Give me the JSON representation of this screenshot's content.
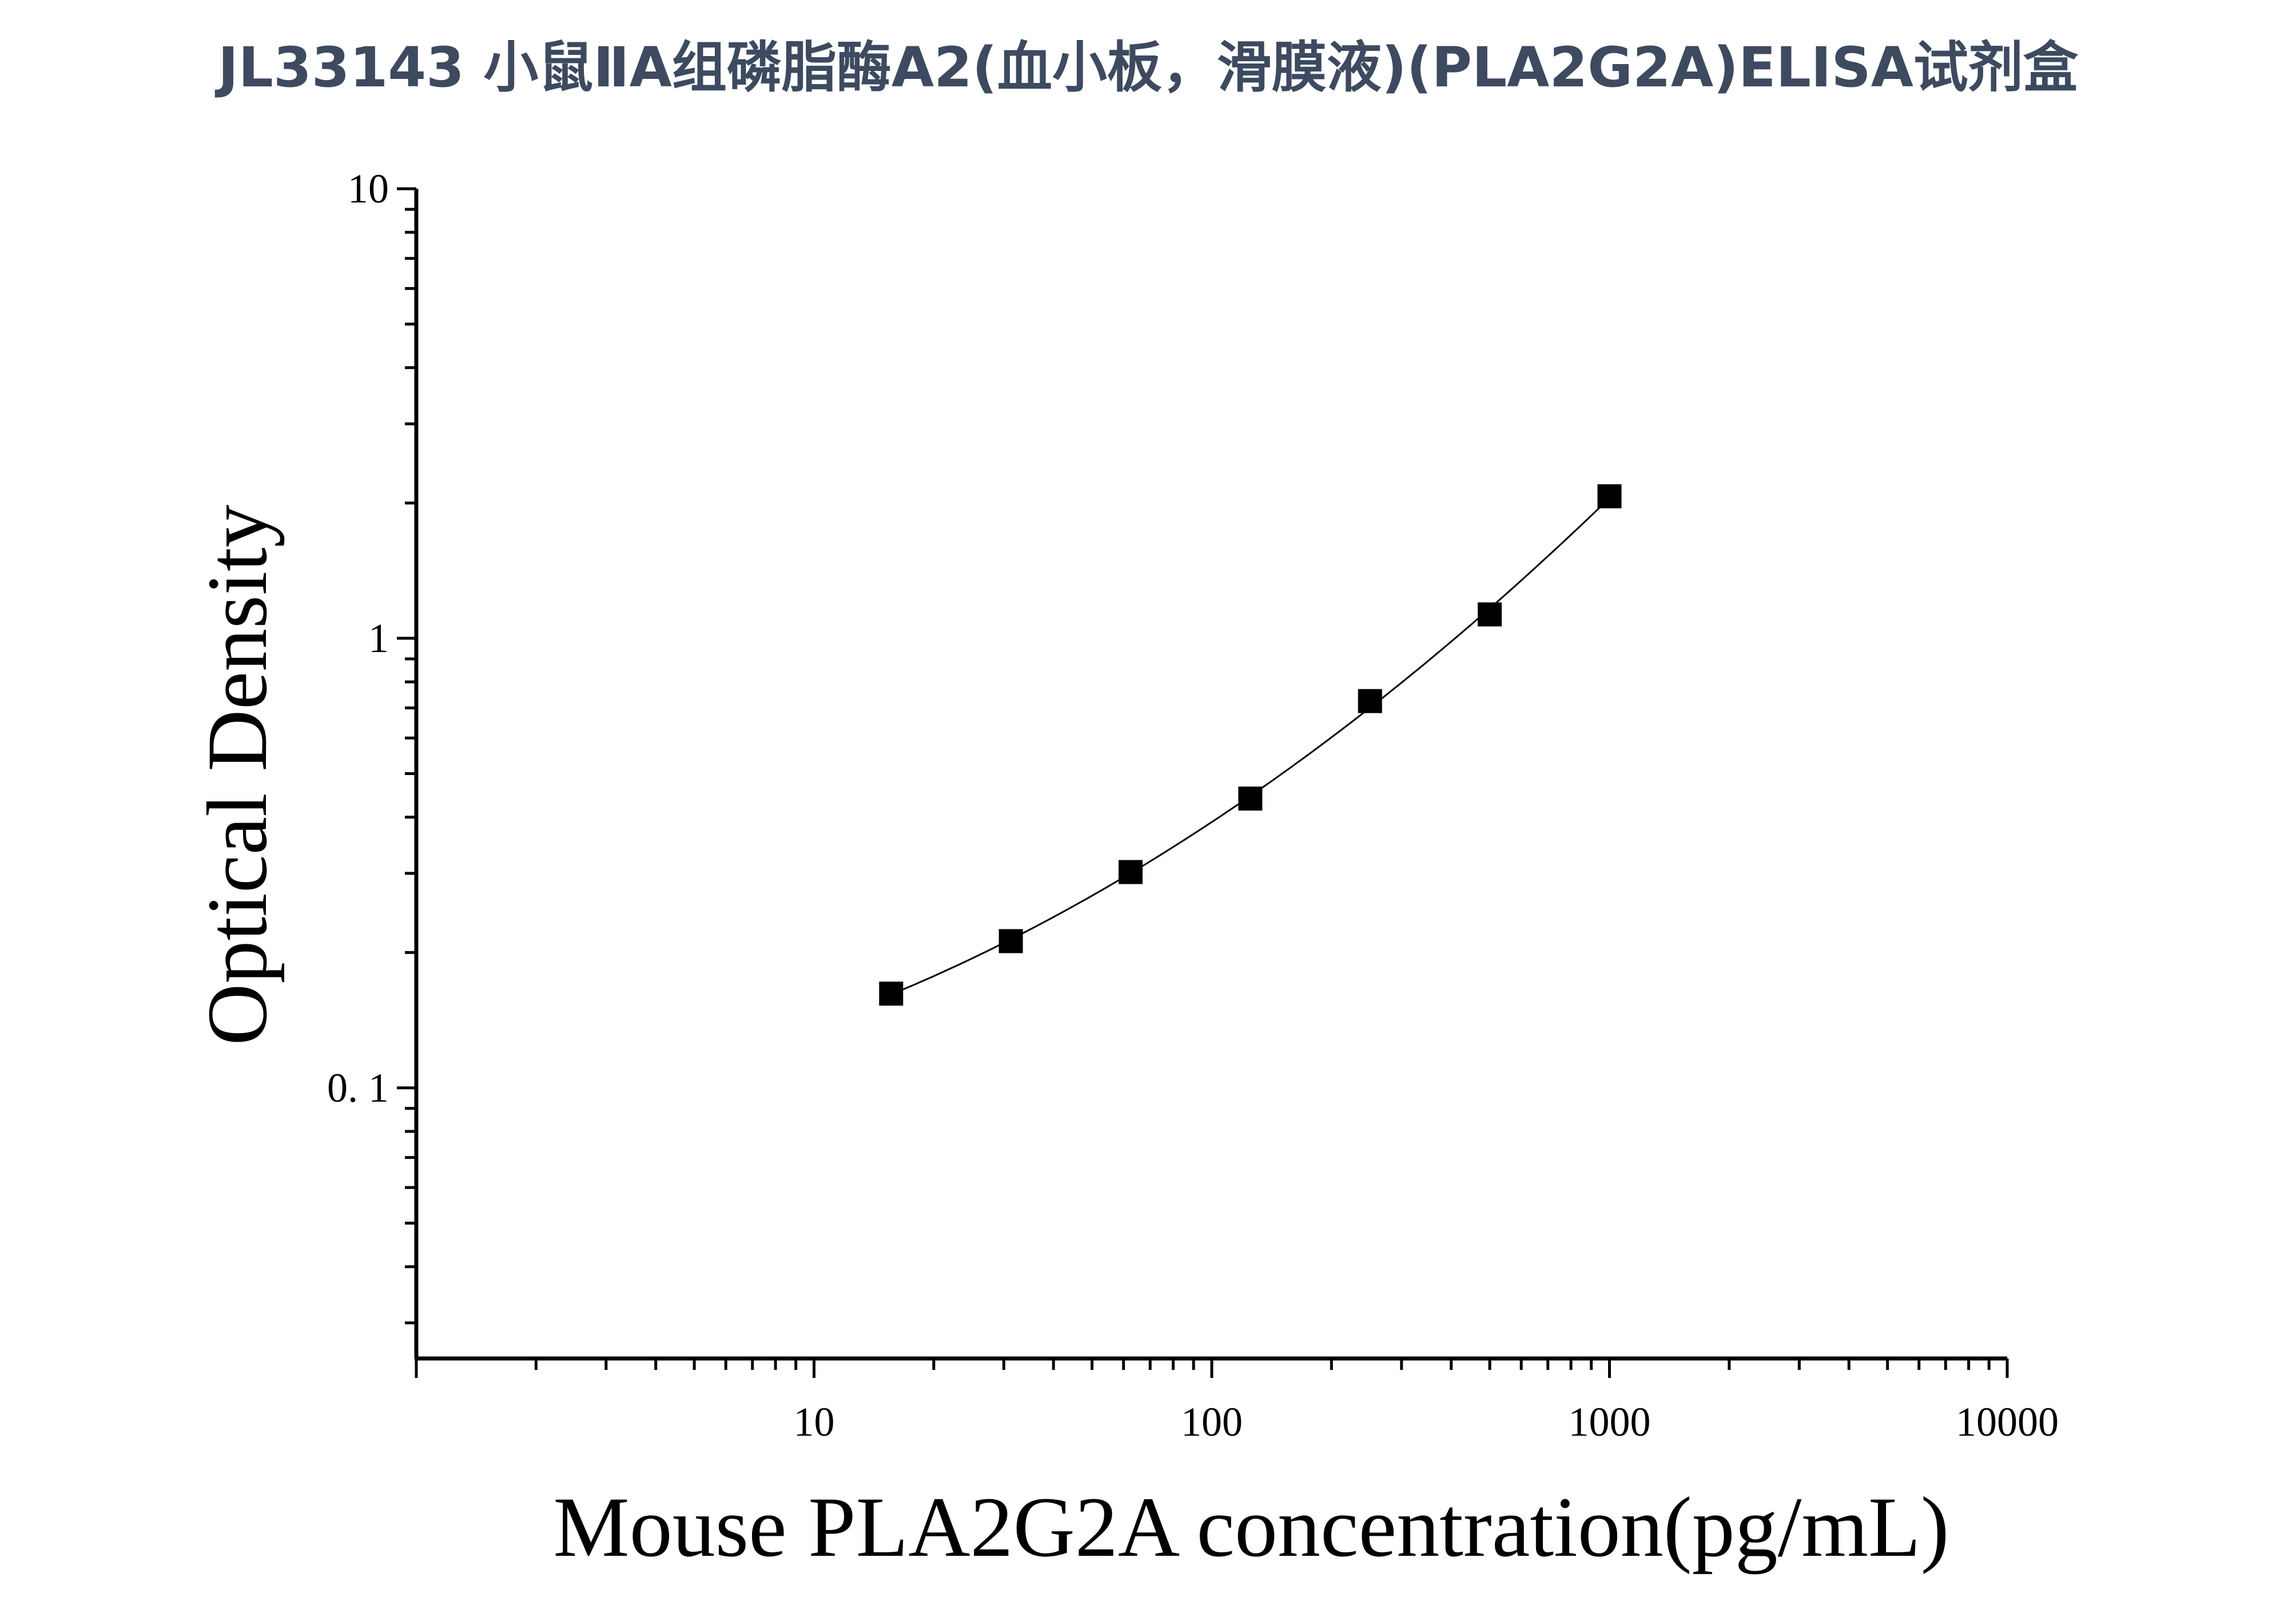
{
  "page_title": "JL33143 小鼠ⅡA组磷脂酶A2(血小板，滑膜液)(PLA2G2A)ELISA试剂盒",
  "chart_data": {
    "type": "scatter",
    "title": "JL33143 小鼠ⅡA组磷脂酶A2(血小板，滑膜液)(PLA2G2A)ELISA试剂盒",
    "xlabel": "Mouse PLA2G2A concentration(pg/mL)",
    "ylabel": "Optical Density",
    "x_scale": "log",
    "y_scale": "log",
    "xlim": [
      1,
      10000
    ],
    "ylim": [
      0.025,
      10
    ],
    "x_ticks": [
      {
        "value": 10,
        "label": "10"
      },
      {
        "value": 100,
        "label": "100"
      },
      {
        "value": 1000,
        "label": "1000"
      },
      {
        "value": 10000,
        "label": "10000"
      }
    ],
    "y_ticks": [
      {
        "value": 0.1,
        "label": "0. 1"
      },
      {
        "value": 1,
        "label": "1"
      },
      {
        "value": 10,
        "label": "10"
      }
    ],
    "grid": false,
    "marker": "square",
    "marker_color": "#000000",
    "points": [
      {
        "x": 15.625,
        "y": 0.162
      },
      {
        "x": 31.25,
        "y": 0.212
      },
      {
        "x": 62.5,
        "y": 0.302
      },
      {
        "x": 125,
        "y": 0.44
      },
      {
        "x": 250,
        "y": 0.725
      },
      {
        "x": 500,
        "y": 1.13
      },
      {
        "x": 1000,
        "y": 2.07
      }
    ],
    "fit_curve": {
      "type": "fitted line",
      "color": "#000000",
      "x_range": [
        15.625,
        1000
      ]
    }
  }
}
